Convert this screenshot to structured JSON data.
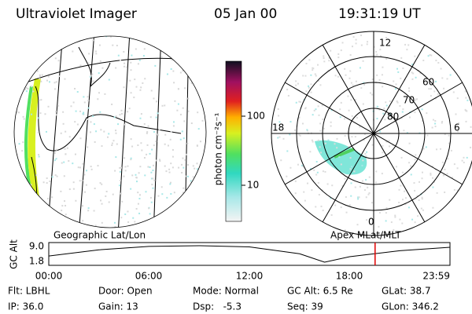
{
  "header": {
    "instrument": "Ultraviolet Imager",
    "date": "05 Jan 00",
    "time": "19:31:19 UT"
  },
  "geo_label": "Geographic Lat/Lon",
  "apex_label": "Apex MLat/MLT",
  "colorbar": {
    "unit": "photon cm⁻²s⁻¹",
    "ticks": [
      "100",
      "10"
    ]
  },
  "polar": {
    "mlt_labels": [
      "12",
      "6",
      "0",
      "18"
    ],
    "lat_labels": [
      "60",
      "70",
      "80"
    ]
  },
  "altitude": {
    "ylabel": "GC Alt",
    "yticks": [
      "9.0",
      "1.8"
    ],
    "xticks": [
      "00:00",
      "06:00",
      "12:00",
      "18:00",
      "23:59"
    ],
    "hours": [
      0,
      3,
      6,
      9,
      12,
      15,
      16.5,
      18,
      21,
      24
    ],
    "gc_alt": [
      4.5,
      7.2,
      8.7,
      9.0,
      8.5,
      5.5,
      1.8,
      4.2,
      6.8,
      8.3
    ],
    "marker_hour": 19.52
  },
  "footer": [
    [
      "Flt: LBHL",
      "Door: Open",
      "Mode: Normal",
      "GC Alt: 6.5 Re",
      "GLat: 38.7"
    ],
    [
      "IP: 36.0",
      "Gain: 13",
      "Dsp:   -5.3",
      "Seq: 39",
      "GLon: 346.2"
    ]
  ]
}
